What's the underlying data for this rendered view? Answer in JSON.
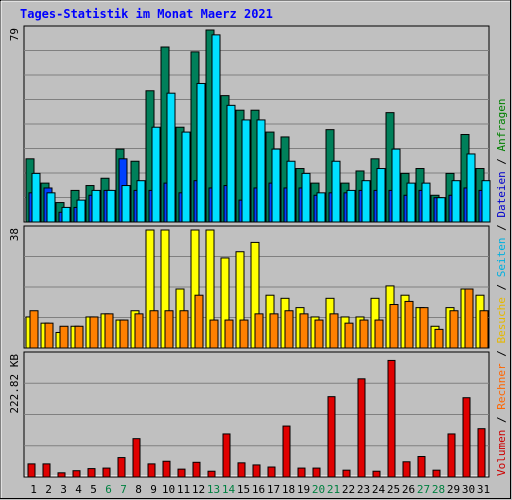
{
  "title": "Tages-Statistik im Monat Maerz 2021",
  "side_legend": [
    {
      "text": "Volumen",
      "color": "#cc0000"
    },
    {
      "text": " / ",
      "color": "#000000"
    },
    {
      "text": "Rechner",
      "color": "#ff6600"
    },
    {
      "text": " / ",
      "color": "#000000"
    },
    {
      "text": "Besuche",
      "color": "#e6b800"
    },
    {
      "text": " / ",
      "color": "#000000"
    },
    {
      "text": "Seiten",
      "color": "#00b0e0"
    },
    {
      "text": " / ",
      "color": "#000000"
    },
    {
      "text": "Dateien",
      "color": "#0000cc"
    },
    {
      "text": " / ",
      "color": "#000000"
    },
    {
      "text": "Anfragen",
      "color": "#008000"
    }
  ],
  "colors": {
    "background": "#c0c0c0",
    "title": "#0000ff",
    "weekend_label": "#008040",
    "weekday_label": "#000000",
    "anfragen": "#00805a",
    "dateien": "#0040ff",
    "seiten": "#00e0ff",
    "besuche": "#ffff00",
    "rechner": "#ff8000",
    "volumen": "#e00000",
    "gridline": "#808080"
  },
  "chart_data": [
    {
      "type": "bar",
      "panel": "anfragen-dateien-seiten",
      "ylabel": "79",
      "ylim": [
        0,
        79
      ],
      "categories": [
        "1",
        "2",
        "3",
        "4",
        "5",
        "6",
        "7",
        "8",
        "9",
        "10",
        "11",
        "12",
        "13",
        "14",
        "15",
        "16",
        "17",
        "18",
        "19",
        "20",
        "21",
        "22",
        "23",
        "24",
        "25",
        "26",
        "27",
        "28",
        "29",
        "30",
        "31"
      ],
      "weekend_days": [
        "6",
        "7",
        "13",
        "14",
        "20",
        "21",
        "27",
        "28"
      ],
      "series": [
        {
          "name": "Anfragen",
          "values": [
            26,
            16,
            8,
            13,
            15,
            18,
            30,
            25,
            54,
            72,
            39,
            70,
            79,
            52,
            46,
            46,
            37,
            35,
            22,
            16,
            38,
            16,
            21,
            26,
            45,
            20,
            22,
            11,
            20,
            36,
            22
          ]
        },
        {
          "name": "Dateien",
          "values": [
            12,
            14,
            4,
            6,
            11,
            13,
            26,
            13,
            13,
            16,
            12,
            17,
            14,
            15,
            9,
            14,
            16,
            14,
            14,
            11,
            12,
            12,
            13,
            13,
            13,
            11,
            13,
            10,
            11,
            14,
            13
          ]
        },
        {
          "name": "Seiten",
          "values": [
            20,
            12,
            6,
            9,
            13,
            13,
            15,
            17,
            39,
            53,
            37,
            57,
            77,
            48,
            42,
            42,
            30,
            25,
            20,
            12,
            25,
            13,
            17,
            22,
            30,
            16,
            16,
            10,
            17,
            28,
            17
          ]
        }
      ]
    },
    {
      "type": "bar",
      "panel": "besuche-rechner",
      "ylabel": "38",
      "ylim": [
        0,
        38
      ],
      "categories": [
        "1",
        "2",
        "3",
        "4",
        "5",
        "6",
        "7",
        "8",
        "9",
        "10",
        "11",
        "12",
        "13",
        "14",
        "15",
        "16",
        "17",
        "18",
        "19",
        "20",
        "21",
        "22",
        "23",
        "24",
        "25",
        "26",
        "27",
        "28",
        "29",
        "30",
        "31"
      ],
      "series": [
        {
          "name": "Besuche",
          "values": [
            10,
            8,
            5,
            7,
            10,
            11,
            9,
            12,
            38,
            38,
            19,
            38,
            38,
            29,
            31,
            34,
            17,
            16,
            13,
            10,
            16,
            10,
            10,
            16,
            20,
            17,
            13,
            7,
            13,
            19,
            17
          ]
        },
        {
          "name": "Rechner",
          "values": [
            12,
            8,
            7,
            7,
            10,
            11,
            9,
            11,
            12,
            12,
            12,
            17,
            9,
            9,
            9,
            11,
            11,
            12,
            11,
            9,
            11,
            8,
            9,
            9,
            14,
            15,
            13,
            6,
            12,
            19,
            12
          ]
        }
      ]
    },
    {
      "type": "bar",
      "panel": "volumen",
      "ylabel": "222.82 KB",
      "ylim": [
        0,
        222.82
      ],
      "categories": [
        "1",
        "2",
        "3",
        "4",
        "5",
        "6",
        "7",
        "8",
        "9",
        "10",
        "11",
        "12",
        "13",
        "14",
        "15",
        "16",
        "17",
        "18",
        "19",
        "20",
        "21",
        "22",
        "23",
        "24",
        "25",
        "26",
        "27",
        "28",
        "29",
        "30",
        "31"
      ],
      "series": [
        {
          "name": "Volumen",
          "values": [
            25,
            25,
            8,
            12,
            16,
            17,
            37,
            73,
            25,
            30,
            15,
            28,
            11,
            82,
            27,
            23,
            19,
            97,
            17,
            17,
            153,
            13,
            187,
            11,
            222,
            29,
            39,
            13,
            82,
            151,
            92
          ]
        }
      ]
    }
  ]
}
